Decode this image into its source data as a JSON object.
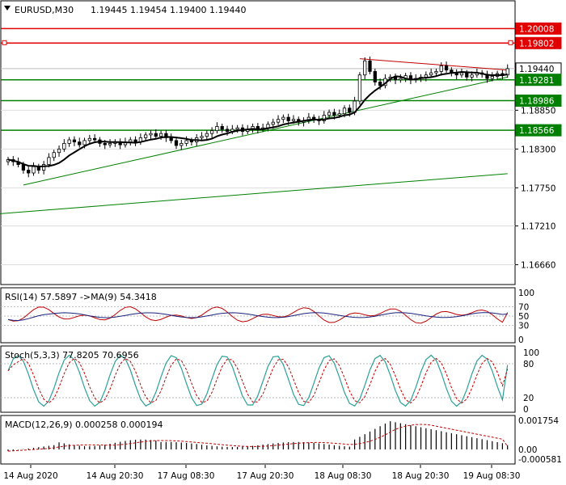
{
  "header": {
    "symbol_tf": "EURUSD,M30",
    "ohlc": "1.19445 1.19454 1.19400 1.19440"
  },
  "price_axis": {
    "ticks": [
      "1.18850",
      "1.18300",
      "1.17750",
      "1.17210",
      "1.16660"
    ],
    "tick_values": [
      1.1885,
      1.183,
      1.1775,
      1.1721,
      1.1666
    ],
    "range": [
      1.1639,
      1.2039
    ]
  },
  "level_labels": [
    {
      "text": "1.20008",
      "value": 1.20008,
      "color": "#e00000"
    },
    {
      "text": "1.19802",
      "value": 1.19802,
      "color": "#e00000"
    },
    {
      "text": "1.19440",
      "value": 1.1944,
      "color": "#000000"
    },
    {
      "text": "1.19281",
      "value": 1.19281,
      "color": "#008000"
    },
    {
      "text": "1.18986",
      "value": 1.18986,
      "color": "#008000"
    },
    {
      "text": "1.18566",
      "value": 1.18566,
      "color": "#008000"
    }
  ],
  "time_axis": [
    "14 Aug 2020",
    "14 Aug 20:30",
    "17 Aug 08:30",
    "17 Aug 20:30",
    "18 Aug 08:30",
    "18 Aug 20:30",
    "19 Aug 08:30"
  ],
  "rsi": {
    "label": "RSI(14) 57.5897  ->MA(9) 54.3418",
    "ticks": [
      "100",
      "70",
      "50",
      "30",
      "0"
    ]
  },
  "stoch": {
    "label": "Stoch(5,3,3) 77.8205 70.6956",
    "ticks": [
      "100",
      "80",
      "20",
      "0"
    ]
  },
  "macd": {
    "label": "MACD(12,26,9) 0.000258 0.000194",
    "ticks": [
      "0.001754",
      "0.00",
      "-0.000581"
    ]
  },
  "colors": {
    "bull": "#000000",
    "bear": "#000000",
    "ma": "#000000",
    "resistance": "#e00000",
    "support": "#008000",
    "trendline_red": "#c00000",
    "trendline_green": "#008000",
    "rsi_line": "#c00000",
    "rsi_ma": "#1a237e",
    "stoch_main": "#2aa198",
    "stoch_signal": "#c00000"
  },
  "chart_data": {
    "type": "candlestick",
    "symbol": "EURUSD",
    "timeframe": "M30",
    "candles_close": [
      1.1815,
      1.1812,
      1.1808,
      1.18,
      1.1796,
      1.1805,
      1.18,
      1.1808,
      1.1818,
      1.1825,
      1.183,
      1.1838,
      1.1843,
      1.184,
      1.1836,
      1.1842,
      1.1845,
      1.1843,
      1.1838,
      1.1836,
      1.1838,
      1.184,
      1.1836,
      1.184,
      1.1843,
      1.184,
      1.1846,
      1.185,
      1.1852,
      1.1848,
      1.1852,
      1.1846,
      1.1842,
      1.1835,
      1.1838,
      1.1842,
      1.184,
      1.1846,
      1.1848,
      1.1852,
      1.1856,
      1.1862,
      1.1858,
      1.1855,
      1.1858,
      1.186,
      1.1855,
      1.1858,
      1.1862,
      1.1858,
      1.186,
      1.1865,
      1.1868,
      1.1872,
      1.1875,
      1.187,
      1.1872,
      1.1868,
      1.187,
      1.1875,
      1.1872,
      1.187,
      1.1878,
      1.1882,
      1.1878,
      1.188,
      1.1888,
      1.1882,
      1.1898,
      1.1935,
      1.1955,
      1.194,
      1.1925,
      1.192,
      1.193,
      1.1932,
      1.1928,
      1.193,
      1.1934,
      1.1928,
      1.193,
      1.1932,
      1.1935,
      1.1938,
      1.194,
      1.1948,
      1.1942,
      1.1938,
      1.1935,
      1.1938,
      1.1932,
      1.1935,
      1.1938,
      1.1936,
      1.193,
      1.1933,
      1.1937,
      1.1935,
      1.1944
    ],
    "ma_period_note": "",
    "horizontal_levels": [
      1.20008,
      1.19802,
      1.19281,
      1.18986,
      1.18566
    ],
    "last_price": 1.1944,
    "rsi_value": 57.5897,
    "rsi_ma_value": 54.3418,
    "stoch_k": 77.8205,
    "stoch_d": 70.6956,
    "macd_main": 0.000258,
    "macd_signal": 0.000194
  }
}
